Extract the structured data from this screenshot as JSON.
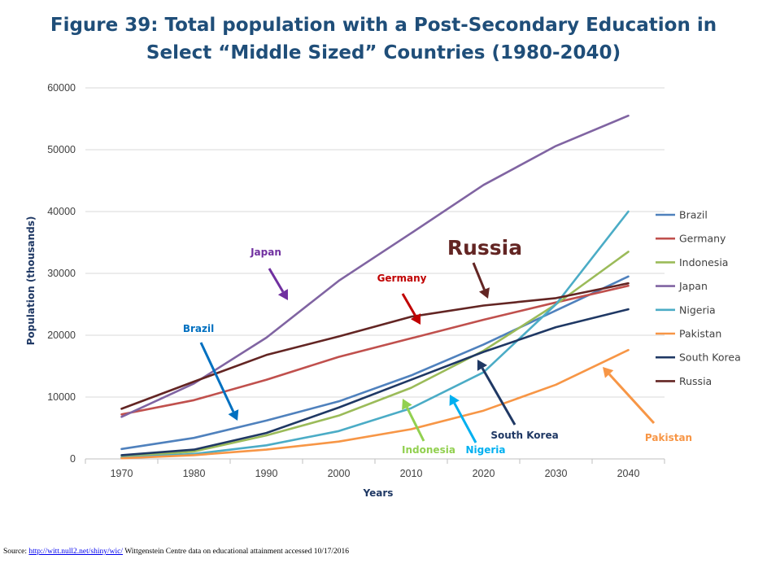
{
  "title_line1": "Figure 39: Total population with a Post-Secondary Education in",
  "title_line2": "Select “Middle Sized” Countries (1980-2040)",
  "source": {
    "prefix": "Source: ",
    "link": "http://witt.null2.net/shiny/wic/",
    "suffix": " Wittgenstein Centre data on educational attainment accessed 10/17/2016"
  },
  "chart_data": {
    "type": "line",
    "xlabel": "Years",
    "ylabel": "Population (thousands)",
    "x": [
      1970,
      1980,
      1990,
      2000,
      2010,
      2020,
      2030,
      2040
    ],
    "ylim": [
      0,
      60000
    ],
    "yticks": [
      0,
      10000,
      20000,
      30000,
      40000,
      50000,
      60000
    ],
    "grid": true,
    "legend_position": "right",
    "series": [
      {
        "name": "Brazil",
        "color": "#4f81bd",
        "values": [
          1600,
          3400,
          6200,
          9300,
          13500,
          18500,
          24000,
          29500
        ]
      },
      {
        "name": "Germany",
        "color": "#c0504d",
        "values": [
          7200,
          9500,
          12800,
          16500,
          19500,
          22500,
          25300,
          28000
        ]
      },
      {
        "name": "Indonesia",
        "color": "#9bbb59",
        "values": [
          300,
          1200,
          3800,
          7000,
          11500,
          17500,
          25000,
          33500
        ]
      },
      {
        "name": "Japan",
        "color": "#8064a2",
        "values": [
          6800,
          12200,
          19600,
          28800,
          36500,
          44300,
          50600,
          55500
        ]
      },
      {
        "name": "Nigeria",
        "color": "#4bacc6",
        "values": [
          200,
          800,
          2200,
          4500,
          8200,
          14000,
          25000,
          40000
        ]
      },
      {
        "name": "Pakistan",
        "color": "#f79646",
        "values": [
          100,
          600,
          1500,
          2800,
          4800,
          7800,
          12000,
          17600
        ]
      },
      {
        "name": "South Korea",
        "color": "#1f3864",
        "values": [
          600,
          1500,
          4200,
          8300,
          12800,
          17300,
          21300,
          24200
        ]
      },
      {
        "name": "Russia",
        "color": "#632523",
        "values": [
          8100,
          12500,
          16800,
          19800,
          23000,
          24800,
          26000,
          28400
        ]
      }
    ],
    "annotations": [
      {
        "name": "Japan",
        "color": "#7030a0"
      },
      {
        "name": "Germany",
        "color": "#c00000"
      },
      {
        "name": "Russia",
        "color": "#632523"
      },
      {
        "name": "Brazil",
        "color": "#0070c0"
      },
      {
        "name": "South Korea",
        "color": "#1f3864"
      },
      {
        "name": "Indonesia",
        "color": "#92d050"
      },
      {
        "name": "Nigeria",
        "color": "#00b0f0"
      },
      {
        "name": "Pakistan",
        "color": "#f79646"
      }
    ]
  }
}
